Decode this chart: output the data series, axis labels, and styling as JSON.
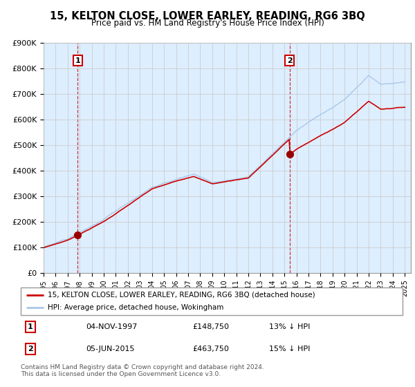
{
  "title": "15, KELTON CLOSE, LOWER EARLEY, READING, RG6 3BQ",
  "subtitle": "Price paid vs. HM Land Registry's House Price Index (HPI)",
  "ylim": [
    0,
    900000
  ],
  "yticks": [
    0,
    100000,
    200000,
    300000,
    400000,
    500000,
    600000,
    700000,
    800000,
    900000
  ],
  "ytick_labels": [
    "£0",
    "£100K",
    "£200K",
    "£300K",
    "£400K",
    "£500K",
    "£600K",
    "£700K",
    "£800K",
    "£900K"
  ],
  "sale1_date": 1997.84,
  "sale1_price": 148750,
  "sale1_label": "1",
  "sale2_date": 2015.43,
  "sale2_price": 463750,
  "sale2_label": "2",
  "hpi_color": "#a8c8e8",
  "price_color": "#cc0000",
  "sale_marker_color": "#990000",
  "annotation_box_color": "#cc0000",
  "grid_color": "#cccccc",
  "bg_color": "#ddeeff",
  "legend_label_price": "15, KELTON CLOSE, LOWER EARLEY, READING, RG6 3BQ (detached house)",
  "legend_label_hpi": "HPI: Average price, detached house, Wokingham",
  "table_row1": [
    "1",
    "04-NOV-1997",
    "£148,750",
    "13% ↓ HPI"
  ],
  "table_row2": [
    "2",
    "05-JUN-2015",
    "£463,750",
    "15% ↓ HPI"
  ],
  "footnote": "Contains HM Land Registry data © Crown copyright and database right 2024.\nThis data is licensed under the Open Government Licence v3.0.",
  "xmin": 1995.0,
  "xmax": 2025.5
}
